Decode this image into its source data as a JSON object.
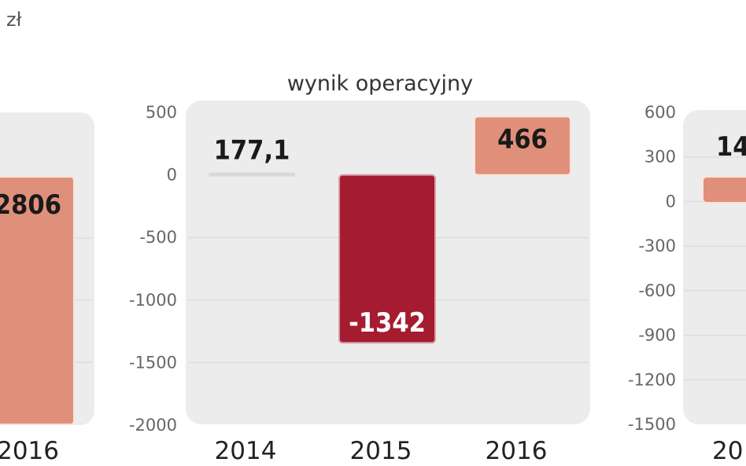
{
  "unit_label": "zł",
  "colors": {
    "positive": "#e0907a",
    "negative": "#a51c30",
    "panel": "#ececec",
    "gridline": "#d6d6d6"
  },
  "chart_data": [
    {
      "type": "bar",
      "partial": "cropped-left",
      "categories": [
        "2016"
      ],
      "values": [
        2806
      ],
      "data_labels": [
        "2806"
      ]
    },
    {
      "type": "bar",
      "title": "wynik operacyjny",
      "categories": [
        "2014",
        "2015",
        "2016"
      ],
      "values": [
        177.1,
        -1342,
        466
      ],
      "data_labels": [
        "177,1",
        "-1342",
        "466"
      ],
      "ylim": [
        -2000,
        500
      ],
      "yticks": [
        "500",
        "0",
        "-500",
        "-1000",
        "-1500",
        "-2000"
      ],
      "grid": true
    },
    {
      "type": "bar",
      "partial": "cropped-right",
      "categories": [
        "20"
      ],
      "data_labels": [
        "14"
      ],
      "ylim": [
        -1500,
        600
      ],
      "yticks": [
        "600",
        "300",
        "0",
        "-300",
        "-600",
        "-900",
        "-1200",
        "-1500"
      ],
      "grid": true
    }
  ]
}
